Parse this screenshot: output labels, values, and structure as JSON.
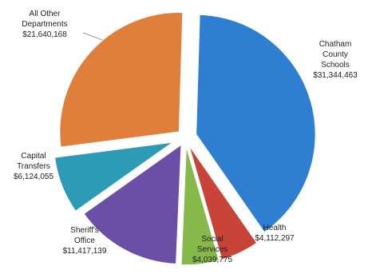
{
  "chart_data": {
    "type": "pie",
    "slices": [
      {
        "name": "Chatham County Schools",
        "label_lines": [
          "Chatham",
          "County",
          "Schools"
        ],
        "value_label": "$31,344,463",
        "value": 31344463,
        "color": "#2e7fd2"
      },
      {
        "name": "Health",
        "label_lines": [
          "Health"
        ],
        "value_label": "$4,112,297",
        "value": 4112297,
        "color": "#c94438"
      },
      {
        "name": "Social Services",
        "label_lines": [
          "Social",
          "Services"
        ],
        "value_label": "$4,039,775",
        "value": 4039775,
        "color": "#86b94a"
      },
      {
        "name": "Sheriff's Office",
        "label_lines": [
          "Sheriff's",
          "Office"
        ],
        "value_label": "$11,417,139",
        "value": 11417139,
        "color": "#6b4fa6"
      },
      {
        "name": "Capital Transfers",
        "label_lines": [
          "Capital",
          "Transfers"
        ],
        "value_label": "$6,124,055",
        "value": 6124055,
        "color": "#2d9bb5"
      },
      {
        "name": "All Other Departments",
        "label_lines": [
          "All Other",
          "Departments"
        ],
        "value_label": "$21,640,168",
        "value": 21640168,
        "color": "#e07f3c"
      }
    ]
  }
}
